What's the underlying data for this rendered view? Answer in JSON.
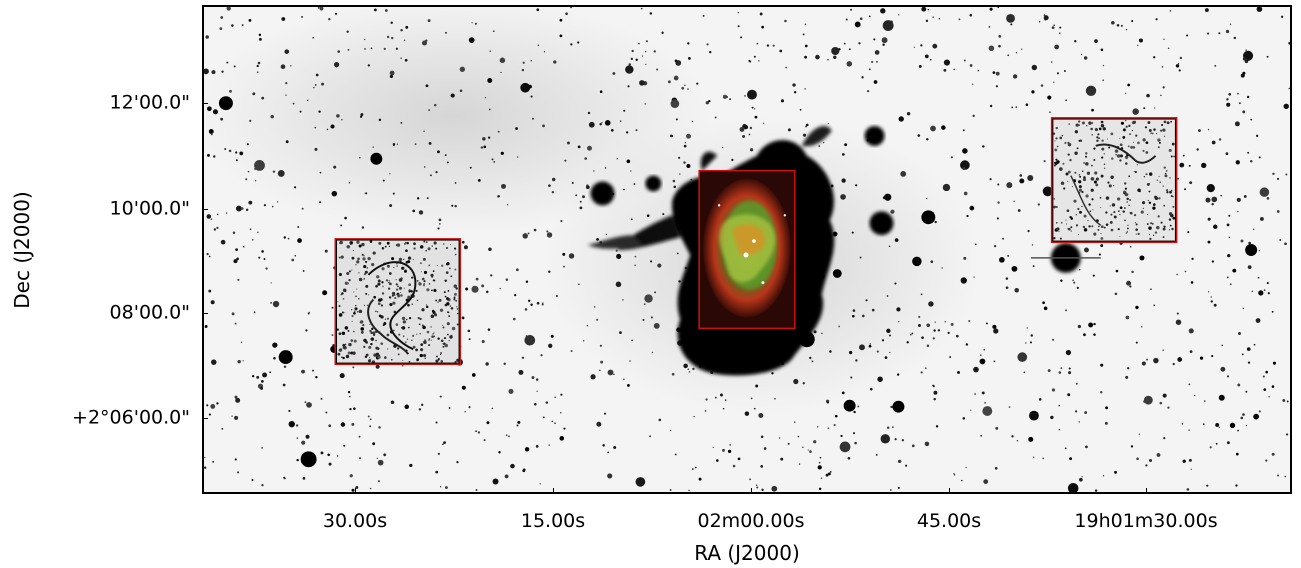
{
  "axes": {
    "x_label": "RA (J2000)",
    "y_label": "Dec (J2000)",
    "x_ticks": [
      "30.00s",
      "15.00s",
      "02m00.00s",
      "45.00s",
      "19h01m30.00s"
    ],
    "y_ticks": [
      "12'00.0\"",
      "10'00.0\"",
      "08'00.0\"",
      "+2°06'00.0\""
    ]
  },
  "image": {
    "colormap": "inverted-grayscale",
    "frame_color": "#000000",
    "inset_border_color": "#cc1111",
    "insets": [
      {
        "name": "left-inset",
        "content": "grayscale-shell"
      },
      {
        "name": "center-inset",
        "content": "color-nebula"
      },
      {
        "name": "right-inset",
        "content": "grayscale-shell"
      }
    ]
  }
}
